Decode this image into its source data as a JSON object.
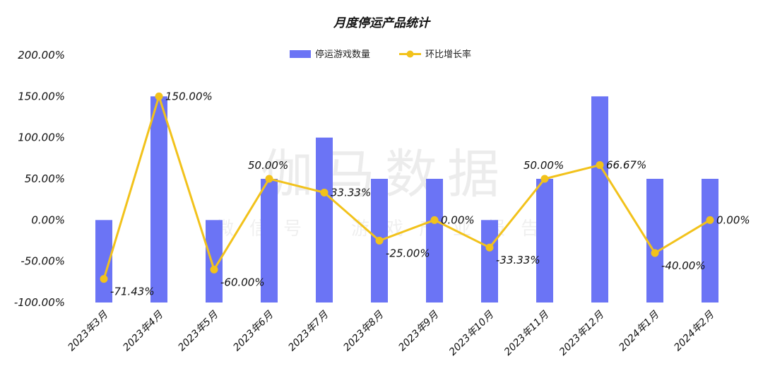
{
  "chart_data": {
    "type": "bar",
    "title": "月度停运产品统计",
    "categories": [
      "2023年3月",
      "2023年4月",
      "2023年5月",
      "2023年6月",
      "2023年7月",
      "2023年8月",
      "2023年9月",
      "2023年10月",
      "2023年11月",
      "2023年12月",
      "2024年1月",
      "2024年2月"
    ],
    "series": [
      {
        "name": "停运游戏数量",
        "type": "bar",
        "color": "#6B74F5",
        "values": [
          2,
          5,
          2,
          3,
          4,
          3,
          3,
          2,
          3,
          5,
          3,
          3
        ]
      },
      {
        "name": "环比增长率",
        "type": "line",
        "color": "#F2C21B",
        "values": [
          -71.43,
          150.0,
          -60.0,
          50.0,
          33.33,
          -25.0,
          0.0,
          -33.33,
          50.0,
          66.67,
          -40.0,
          0.0
        ],
        "labels": [
          "-71.43%",
          "150.00%",
          "-60.00%",
          "50.00%",
          "33.33%",
          "-25.00%",
          "0.00%",
          "-33.33%",
          "50.00%",
          "66.67%",
          "-40.00%",
          "0.00%"
        ]
      }
    ],
    "y_ticks": [
      "200.00%",
      "150.00%",
      "100.00%",
      "50.00%",
      "0.00%",
      "-50.00%",
      "-100.00%"
    ],
    "ylim": [
      -100,
      200
    ],
    "bar_axis_range": [
      0,
      6
    ],
    "legend_position": "top-center",
    "grid": false
  },
  "watermark": {
    "main": "伽马数据",
    "sub": "微信号：游戏产业报告"
  }
}
